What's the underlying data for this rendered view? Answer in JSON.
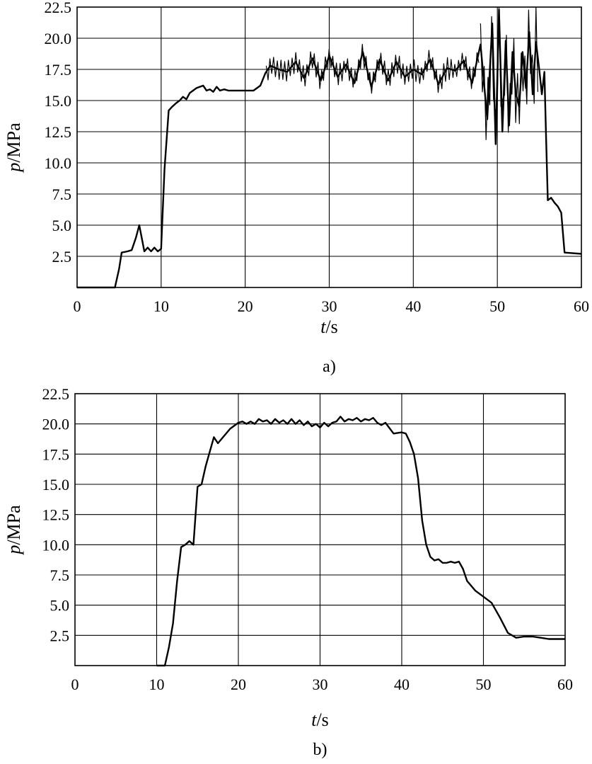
{
  "chart_data": [
    {
      "type": "line",
      "panel_label": "a)",
      "xlabel_var": "t",
      "xlabel_unit": "/s",
      "ylabel_var": "p",
      "ylabel_unit": "/MPa",
      "xlim": [
        0,
        60
      ],
      "ylim": [
        0,
        22.5
      ],
      "x_ticks": [
        "0",
        "10",
        "20",
        "30",
        "40",
        "50",
        "60"
      ],
      "y_ticks": [
        "2.5",
        "5.0",
        "7.5",
        "10.0",
        "12.5",
        "15.0",
        "17.5",
        "20.0",
        "22.5"
      ],
      "grid": true,
      "legend": "none",
      "line_color": "#000000",
      "series": [
        {
          "x": [
            0,
            4.5,
            5,
            5.3,
            6,
            6.5,
            7,
            7.4,
            8,
            8.4,
            8.8,
            9.2,
            9.6,
            10,
            10.4,
            10.9,
            11.3,
            11.8,
            12.2,
            12.6,
            13,
            13.4,
            13.8,
            14.2,
            14.6,
            15,
            15.4,
            15.8,
            16.2,
            16.6,
            17,
            17.5,
            18,
            19,
            20,
            21,
            21.8,
            22.4,
            23,
            24,
            25,
            26,
            27,
            28,
            29,
            30,
            31,
            32,
            33,
            34,
            35,
            36,
            37,
            38,
            39,
            40,
            41,
            42,
            43,
            44,
            45,
            46,
            47,
            48,
            48.8,
            49.4,
            49.8,
            50.2,
            50.6,
            51,
            51.4,
            51.8,
            52.2,
            52.6,
            53,
            53.4,
            53.8,
            54.2,
            54.6,
            55,
            55.3,
            55.6,
            55.8,
            56,
            56.4,
            56.8,
            57.2,
            57.6,
            58,
            60
          ],
          "y": [
            0,
            0,
            1.5,
            2.8,
            2.9,
            3.0,
            4.0,
            5.0,
            2.9,
            3.2,
            2.9,
            3.2,
            2.9,
            3.1,
            9.5,
            14.2,
            14.5,
            14.8,
            15.0,
            15.3,
            15.1,
            15.6,
            15.8,
            16.0,
            16.1,
            16.2,
            15.8,
            15.9,
            15.7,
            16.1,
            15.8,
            15.9,
            15.8,
            15.8,
            15.8,
            15.8,
            16.2,
            17.2,
            17.8,
            17.5,
            17.3,
            18.1,
            16.8,
            18.4,
            16.6,
            18.6,
            16.9,
            17.9,
            16.4,
            18.9,
            16.1,
            18.3,
            16.6,
            18.1,
            16.9,
            17.5,
            17.1,
            18.3,
            16.3,
            17.6,
            17.4,
            18.2,
            16.4,
            19.5,
            13.5,
            21.2,
            11.5,
            22.3,
            12.5,
            19.8,
            13.0,
            18.9,
            15.5,
            14.5,
            18.9,
            16.0,
            20.5,
            15.5,
            19.7,
            17.4,
            15.5,
            17.3,
            12.0,
            7.0,
            7.2,
            6.8,
            6.5,
            6.0,
            2.8,
            2.7
          ]
        }
      ],
      "noise_segments": [
        {
          "x_start": 22.5,
          "x_end": 48.0,
          "amplitude": 0.9
        },
        {
          "x_start": 48.0,
          "x_end": 55.0,
          "amplitude": 2.8
        }
      ]
    },
    {
      "type": "line",
      "panel_label": "b)",
      "xlabel_var": "t",
      "xlabel_unit": "/s",
      "ylabel_var": "p",
      "ylabel_unit": "/MPa",
      "xlim": [
        0,
        60
      ],
      "ylim": [
        0,
        22.5
      ],
      "x_ticks": [
        "0",
        "10",
        "20",
        "30",
        "40",
        "50",
        "60"
      ],
      "y_ticks": [
        "2.5",
        "5.0",
        "7.5",
        "10.0",
        "12.5",
        "15.0",
        "17.5",
        "20.0",
        "22.5"
      ],
      "grid": true,
      "legend": "none",
      "line_color": "#000000",
      "series": [
        {
          "x": [
            10,
            11,
            11.5,
            12,
            12.5,
            13,
            13.5,
            14,
            14.5,
            15,
            15.5,
            16,
            17,
            17.5,
            18,
            19,
            20,
            20.5,
            21,
            21.5,
            22,
            22.5,
            23,
            23.5,
            24,
            24.5,
            25,
            25.5,
            26,
            26.5,
            27,
            27.5,
            28,
            28.5,
            29,
            29.5,
            30,
            30.5,
            31,
            31.5,
            32,
            32.5,
            33,
            33.5,
            34,
            34.5,
            35,
            35.5,
            36,
            36.5,
            37,
            37.5,
            38,
            39,
            40,
            40.5,
            41,
            41.5,
            42,
            42.5,
            43,
            43.5,
            44,
            44.5,
            45,
            45.5,
            46,
            46.5,
            47,
            47.5,
            48,
            49,
            50,
            51,
            52,
            53,
            54,
            55,
            56,
            57,
            58,
            60
          ],
          "y": [
            0,
            0,
            1.5,
            3.5,
            7.0,
            9.8,
            10.0,
            10.3,
            10.0,
            14.8,
            15.0,
            16.5,
            18.9,
            18.4,
            18.8,
            19.6,
            20.1,
            20.2,
            20.0,
            20.2,
            20.0,
            20.4,
            20.2,
            20.3,
            20.0,
            20.4,
            20.1,
            20.3,
            20.0,
            20.4,
            20.0,
            20.3,
            19.9,
            20.2,
            19.8,
            20.0,
            19.7,
            20.1,
            19.8,
            20.1,
            20.2,
            20.6,
            20.2,
            20.4,
            20.3,
            20.5,
            20.2,
            20.4,
            20.3,
            20.5,
            20.1,
            19.9,
            20.1,
            19.2,
            19.3,
            19.2,
            18.5,
            17.5,
            15.5,
            12.0,
            10.0,
            9.0,
            8.7,
            8.8,
            8.5,
            8.5,
            8.6,
            8.5,
            8.6,
            8.0,
            7.0,
            6.2,
            5.7,
            5.2,
            4.0,
            2.7,
            2.3,
            2.4,
            2.4,
            2.3,
            2.2,
            2.2
          ]
        }
      ]
    }
  ]
}
